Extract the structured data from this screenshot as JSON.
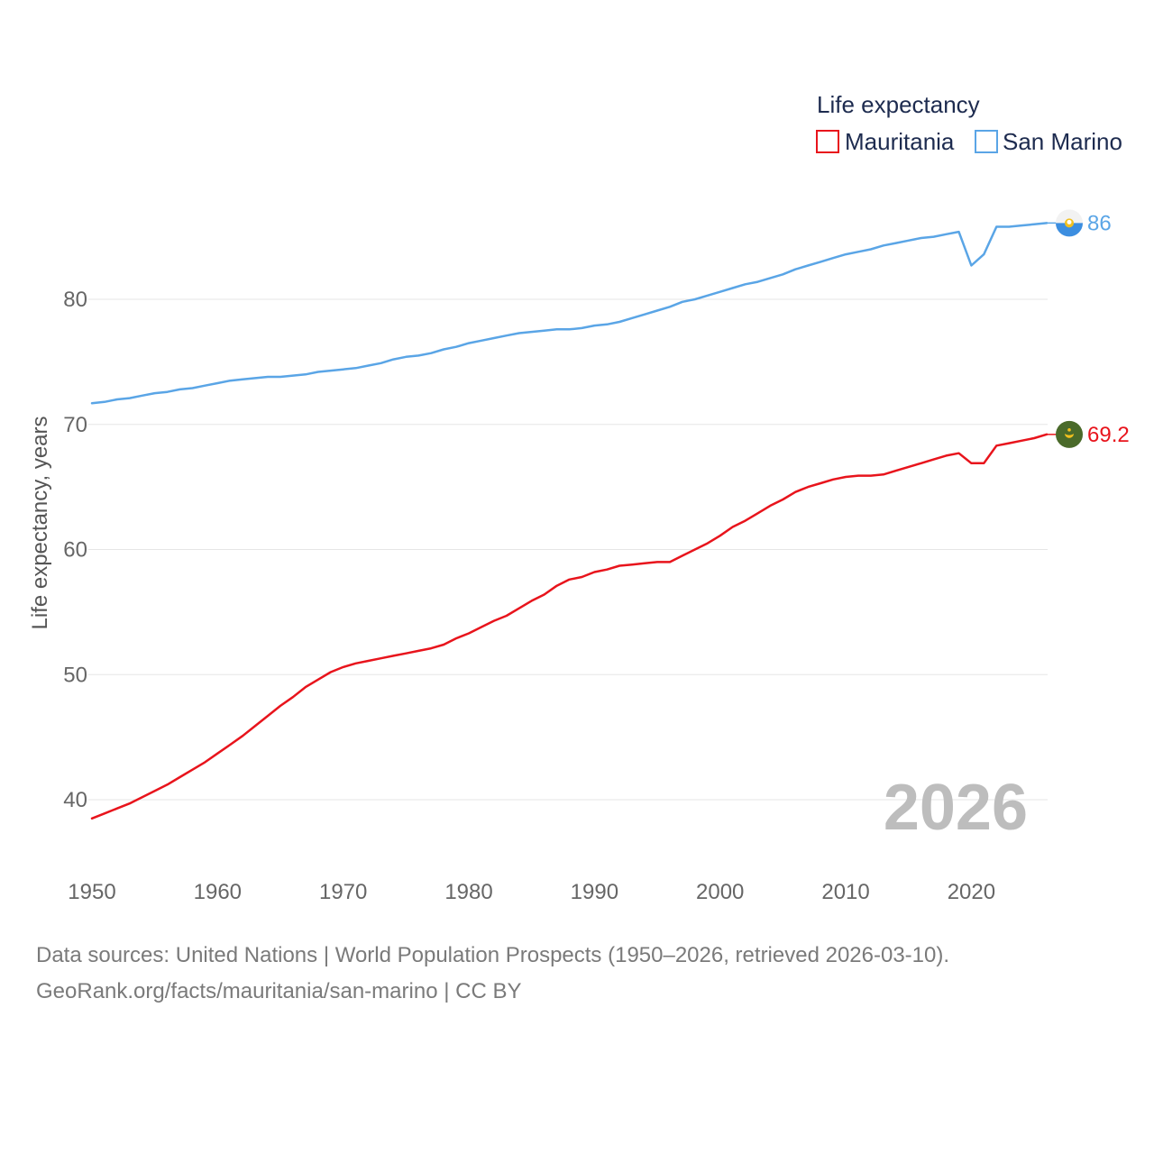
{
  "chart_data": {
    "type": "line",
    "title": "Life expectancy",
    "ylabel": "Life expectancy, years",
    "xlabel": "",
    "xlim": [
      1950,
      2026
    ],
    "ylim": [
      35,
      90
    ],
    "yticks": [
      40,
      50,
      60,
      70,
      80
    ],
    "xticks": [
      1950,
      1960,
      1970,
      1980,
      1990,
      2000,
      2010,
      2020
    ],
    "current_year": "2026",
    "legend_placement": "top-right",
    "grid": true,
    "x": [
      1950,
      1951,
      1952,
      1953,
      1954,
      1955,
      1956,
      1957,
      1958,
      1959,
      1960,
      1961,
      1962,
      1963,
      1964,
      1965,
      1966,
      1967,
      1968,
      1969,
      1970,
      1971,
      1972,
      1973,
      1974,
      1975,
      1976,
      1977,
      1978,
      1979,
      1980,
      1981,
      1982,
      1983,
      1984,
      1985,
      1986,
      1987,
      1988,
      1989,
      1990,
      1991,
      1992,
      1993,
      1994,
      1995,
      1996,
      1997,
      1998,
      1999,
      2000,
      2001,
      2002,
      2003,
      2004,
      2005,
      2006,
      2007,
      2008,
      2009,
      2010,
      2011,
      2012,
      2013,
      2014,
      2015,
      2016,
      2017,
      2018,
      2019,
      2020,
      2021,
      2022,
      2023,
      2024,
      2025,
      2026
    ],
    "series": [
      {
        "name": "Mauritania",
        "color": "#e8141c",
        "end_label": "69.2",
        "values": [
          38.5,
          38.9,
          39.3,
          39.7,
          40.2,
          40.7,
          41.2,
          41.8,
          42.4,
          43.0,
          43.7,
          44.4,
          45.1,
          45.9,
          46.7,
          47.5,
          48.2,
          49.0,
          49.6,
          50.2,
          50.6,
          50.9,
          51.1,
          51.3,
          51.5,
          51.7,
          51.9,
          52.1,
          52.4,
          52.9,
          53.3,
          53.8,
          54.3,
          54.7,
          55.3,
          55.9,
          56.4,
          57.1,
          57.6,
          57.8,
          58.2,
          58.4,
          58.7,
          58.8,
          58.9,
          59.0,
          59.0,
          59.5,
          60.0,
          60.5,
          61.1,
          61.8,
          62.3,
          62.9,
          63.5,
          64.0,
          64.6,
          65.0,
          65.3,
          65.6,
          65.8,
          65.9,
          65.9,
          66.0,
          66.3,
          66.6,
          66.9,
          67.2,
          67.5,
          67.7,
          66.9,
          66.9,
          68.3,
          68.5,
          68.7,
          68.9,
          69.2
        ]
      },
      {
        "name": "San Marino",
        "color": "#5aa5e6",
        "end_label": "86",
        "values": [
          71.7,
          71.8,
          72.0,
          72.1,
          72.3,
          72.5,
          72.6,
          72.8,
          72.9,
          73.1,
          73.3,
          73.5,
          73.6,
          73.7,
          73.8,
          73.8,
          73.9,
          74.0,
          74.2,
          74.3,
          74.4,
          74.5,
          74.7,
          74.9,
          75.2,
          75.4,
          75.5,
          75.7,
          76.0,
          76.2,
          76.5,
          76.7,
          76.9,
          77.1,
          77.3,
          77.4,
          77.5,
          77.6,
          77.6,
          77.7,
          77.9,
          78.0,
          78.2,
          78.5,
          78.8,
          79.1,
          79.4,
          79.8,
          80.0,
          80.3,
          80.6,
          80.9,
          81.2,
          81.4,
          81.7,
          82.0,
          82.4,
          82.7,
          83.0,
          83.3,
          83.6,
          83.8,
          84.0,
          84.3,
          84.5,
          84.7,
          84.9,
          85.0,
          85.2,
          85.4,
          82.7,
          83.6,
          85.8,
          85.8,
          85.9,
          86.0,
          86.1
        ]
      }
    ],
    "footer_line1": "Data sources: United Nations | World Population Prospects (1950–2026, retrieved 2026-03-10).",
    "footer_line2": "GeoRank.org/facts/mauritania/san-marino | CC BY"
  }
}
